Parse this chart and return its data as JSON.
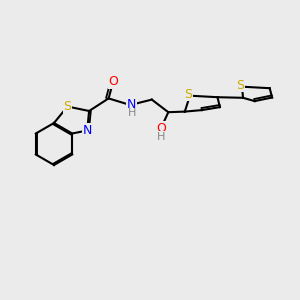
{
  "bg_color": "#ebebeb",
  "bond_color": "#000000",
  "bond_lw": 1.5,
  "atom_colors": {
    "S": "#ccaa00",
    "N": "#0000ff",
    "O": "#ff0000",
    "H": "#888888",
    "C": "#000000"
  },
  "font_size": 9,
  "font_size_small": 8
}
